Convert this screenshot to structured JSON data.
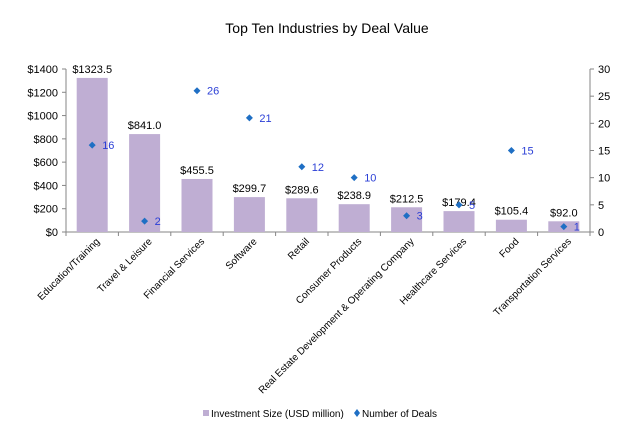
{
  "chart_data": {
    "type": "bar",
    "title": "Top Ten Industries by Deal Value",
    "xlabel": "",
    "ylabel": "",
    "categories": [
      "Education/Training",
      "Travel & Leisure",
      "Financial Services",
      "Software",
      "Retail",
      "Consumer Products",
      "Real Estate Development & Operating Company",
      "Healthcare Services",
      "Food",
      "Transportation Services"
    ],
    "series": [
      {
        "name": "Investment Size (USD million)",
        "type": "bar",
        "axis": "left",
        "color": "#bfaed3",
        "values": [
          1323.5,
          841.0,
          455.5,
          299.7,
          289.6,
          238.9,
          212.5,
          179.4,
          105.4,
          92.0
        ],
        "labels": [
          "$1323.5",
          "$841.0",
          "$455.5",
          "$299.7",
          "$289.6",
          "$238.9",
          "$212.5",
          "$179.4",
          "$105.4",
          "$92.0"
        ]
      },
      {
        "name": "Number of Deals",
        "type": "scatter",
        "axis": "right",
        "color": "#1f6fc4",
        "values": [
          16,
          2,
          26,
          21,
          12,
          10,
          3,
          5,
          15,
          1
        ],
        "labels": [
          "16",
          "2",
          "26",
          "21",
          "12",
          "10",
          "3",
          "5",
          "15",
          "1"
        ]
      }
    ],
    "ylim": [
      0,
      1400
    ],
    "yticks": [
      "$0",
      "$200",
      "$400",
      "$600",
      "$800",
      "$1000",
      "$1200",
      "$1400"
    ],
    "ytick_values": [
      0,
      200,
      400,
      600,
      800,
      1000,
      1200,
      1400
    ],
    "y2lim": [
      0,
      30
    ],
    "y2ticks": [
      "0",
      "5",
      "10",
      "15",
      "20",
      "25",
      "30"
    ],
    "y2tick_values": [
      0,
      5,
      10,
      15,
      20,
      25,
      30
    ],
    "grid": false,
    "legend_position": "bottom-center"
  }
}
